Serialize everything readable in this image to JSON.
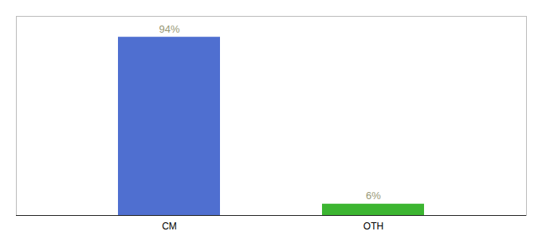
{
  "chart_data": {
    "type": "bar",
    "categories": [
      "CM",
      "OTH"
    ],
    "values": [
      94,
      6
    ],
    "colors": [
      "#4f6fd0",
      "#3cb531"
    ],
    "value_labels": [
      "94%",
      "6%"
    ],
    "data_labels": true,
    "ylim": [
      0,
      105
    ],
    "tick_labels": "x",
    "grid": false
  }
}
